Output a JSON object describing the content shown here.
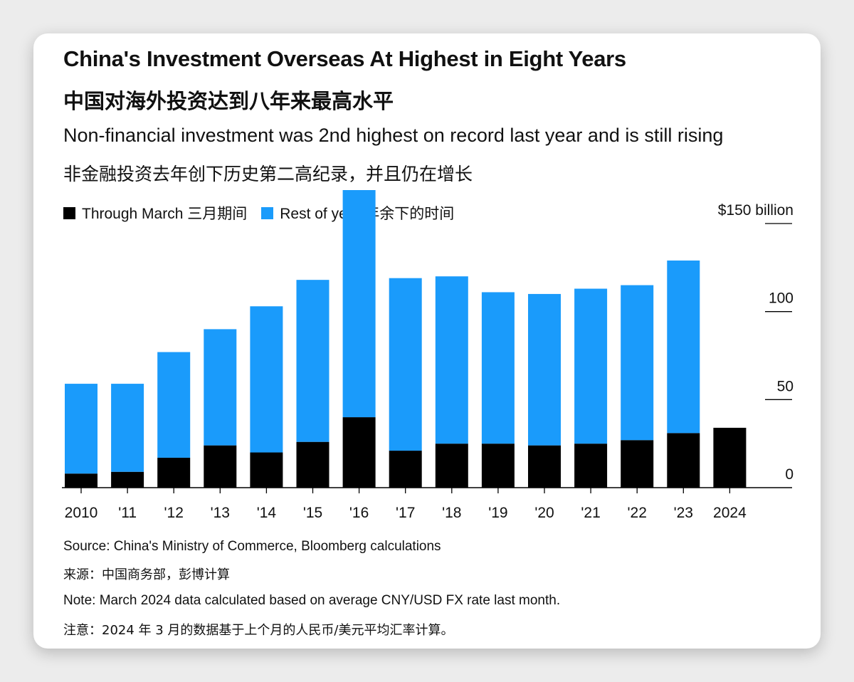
{
  "header": {
    "title": "China's Investment Overseas At Highest in Eight Years",
    "title_cn": "中国对海外投资达到八年来最高水平",
    "subtitle": "Non-financial investment was 2nd highest on record last year and is still rising",
    "subtitle_cn": "非金融投资去年创下历史第二高纪录，并且仍在增长"
  },
  "footer": {
    "source": "Source: China's Ministry of Commerce, Bloomberg calculations",
    "source_cn": "来源：中国商务部，彭博计算",
    "note": "Note: March 2024 data calculated based on average CNY/USD FX rate last month.",
    "note_cn": "注意：2024 年 3 月的数据基于上个月的人民币/美元平均汇率计算。"
  },
  "colors": {
    "through_march": "#000000",
    "rest_of_year": "#1a9bfb"
  },
  "chart_data": {
    "type": "bar",
    "stacked": true,
    "categories": [
      "2010",
      "'11",
      "'12",
      "'13",
      "'14",
      "'15",
      "'16",
      "'17",
      "'18",
      "'19",
      "'20",
      "'21",
      "'22",
      "'23",
      "2024"
    ],
    "series": [
      {
        "name": "Through March 三月期间",
        "color": "#000000",
        "values": [
          8,
          9,
          17,
          24,
          20,
          26,
          40,
          21,
          25,
          25,
          24,
          25,
          27,
          31,
          34
        ]
      },
      {
        "name": "Rest of year 年余下的时间",
        "color": "#1a9bfb",
        "values": [
          51,
          50,
          60,
          66,
          83,
          92,
          129,
          98,
          95,
          86,
          86,
          88,
          88,
          98,
          0
        ]
      }
    ],
    "ylim": [
      0,
      150
    ],
    "yticks": [
      0,
      50,
      100,
      150
    ],
    "ytick_labels": [
      "0",
      "50",
      "100",
      "$150 billion"
    ],
    "y_axis_side": "right",
    "legend_position": "top-left",
    "grid": false
  }
}
